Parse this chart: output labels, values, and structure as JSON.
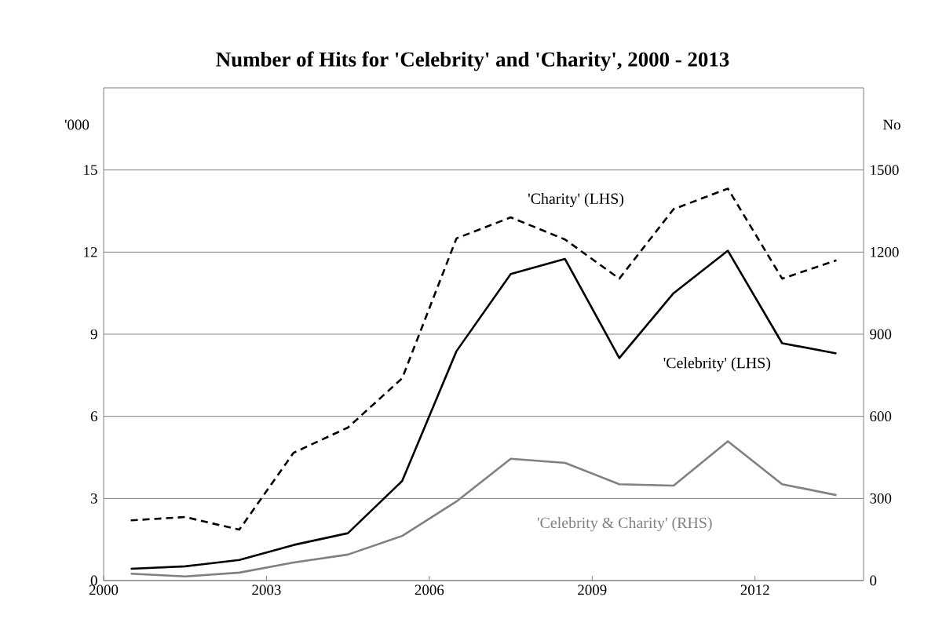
{
  "chart_data": {
    "type": "line",
    "title": "**Number of Hits for 'Celebrity' and 'Charity', 2000 - 2013**",
    "ylabel": "'000",
    "y2label": "No",
    "x": [
      2000,
      2001,
      2002,
      2003,
      2004,
      2005,
      2006,
      2007,
      2008,
      2009,
      2010,
      2011,
      2012,
      2013
    ],
    "xlim": [
      1999.5,
      2013.5
    ],
    "xticks": [
      {
        "value": 1999.5,
        "label": "2000"
      },
      {
        "value": 2002.5,
        "label": "2003"
      },
      {
        "value": 2005.5,
        "label": "2006"
      },
      {
        "value": 2008.5,
        "label": "2009"
      },
      {
        "value": 2011.5,
        "label": "2012"
      }
    ],
    "ylim": [
      0,
      18
    ],
    "yticks": [
      0,
      3,
      6,
      9,
      12,
      15
    ],
    "y2lim": [
      0,
      1800
    ],
    "y2ticks": [
      0,
      300,
      600,
      900,
      1200,
      1500
    ],
    "grid": "y",
    "marker": "none",
    "series": [
      {
        "name": "'Charity' (LHS)",
        "color": "#000000",
        "line_style": "dashed",
        "values": [
          2.2,
          2.32,
          1.86,
          4.67,
          5.59,
          7.39,
          12.5,
          13.27,
          12.46,
          11.03,
          13.57,
          14.32,
          11.03,
          11.7
        ]
      },
      {
        "name": "'Celebrity' (LHS)",
        "color": "#000000",
        "line_style": "solid",
        "values": [
          0.43,
          0.52,
          0.75,
          1.3,
          1.73,
          3.64,
          8.38,
          11.2,
          11.75,
          8.13,
          10.5,
          12.05,
          8.67,
          8.3
        ]
      },
      {
        "name": "'Celebrity & Charity' (RHS)",
        "color": "#808080",
        "line_style": "solid",
        "axis": "y2",
        "values": [
          25,
          15,
          29,
          66,
          95,
          163,
          289,
          445,
          430,
          352,
          347,
          509,
          352,
          312
        ]
      }
    ]
  }
}
